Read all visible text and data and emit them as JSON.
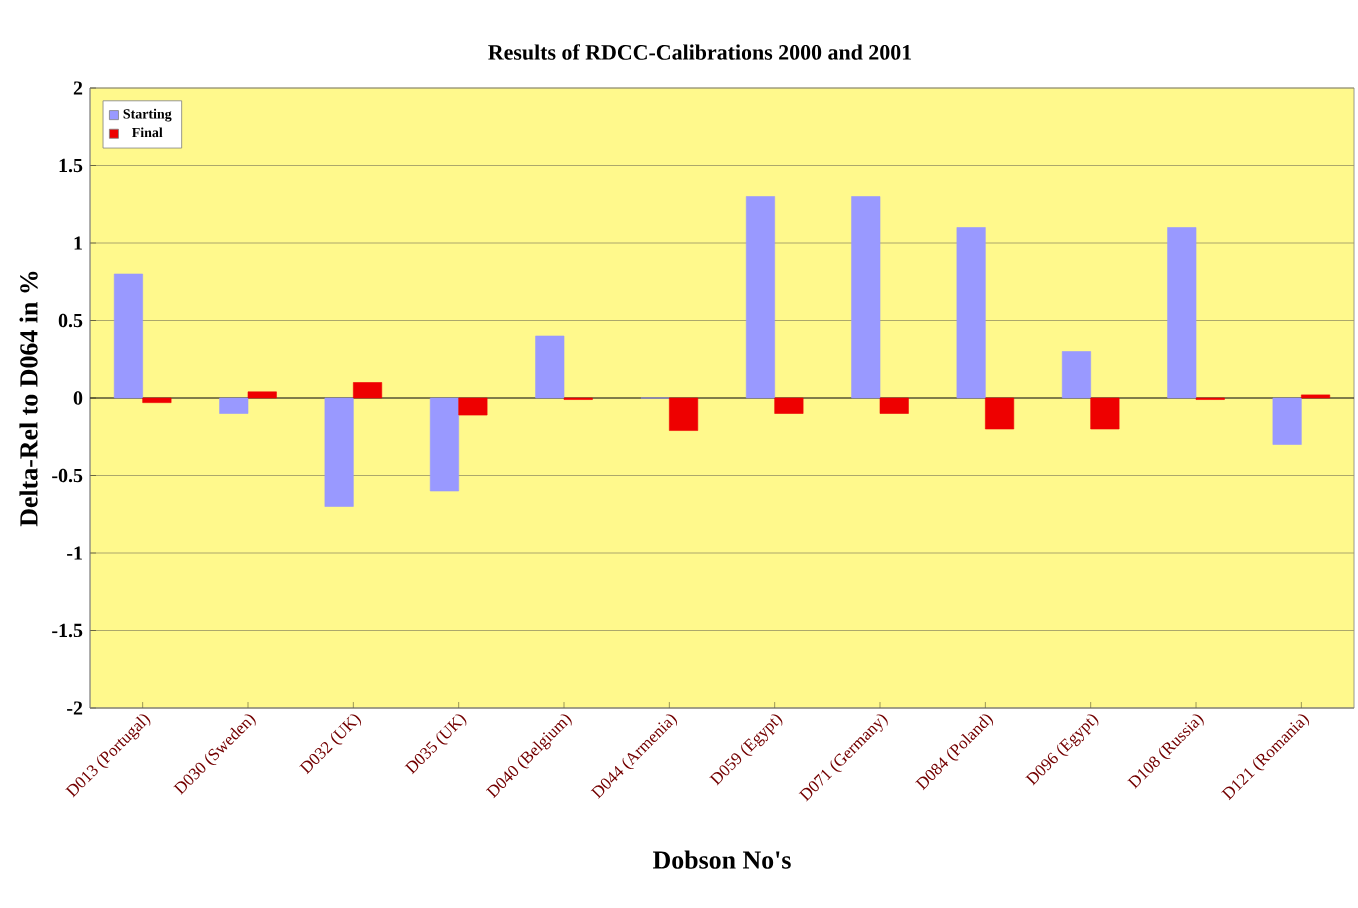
{
  "chart_data": {
    "type": "bar",
    "title": "Results of RDCC-Calibrations 2000 and 2001",
    "xlabel": "Dobson No's",
    "ylabel": "Delta-Rel to D064 in %",
    "categories": [
      "D013 (Portugal)",
      "D030 (Sweden)",
      "D032 (UK)",
      "D035 (UK)",
      "D040 (Belgium)",
      "D044 (Armenia)",
      "D059 (Egypt)",
      "D071 (Germany)",
      "D084 (Poland)",
      "D096 (Egypt)",
      "D108 (Russia)",
      "D121 (Romania)"
    ],
    "series": [
      {
        "name": "Starting",
        "color": "#9999ff",
        "values": [
          0.8,
          -0.1,
          -0.7,
          -0.6,
          0.4,
          0,
          1.3,
          1.3,
          1.1,
          0.3,
          1.1,
          -0.3
        ]
      },
      {
        "name": "Final",
        "color": "#ee0000",
        "values": [
          -0.03,
          0.04,
          0.1,
          -0.11,
          -0.01,
          -0.21,
          -0.1,
          -0.1,
          -0.2,
          -0.2,
          -0.01,
          0.02
        ]
      }
    ],
    "ylim": [
      -2,
      2
    ],
    "yticks": [
      -2,
      -1.5,
      -1,
      -0.5,
      0,
      0.5,
      1,
      1.5,
      2
    ],
    "grid": "y",
    "legend": "top left"
  }
}
